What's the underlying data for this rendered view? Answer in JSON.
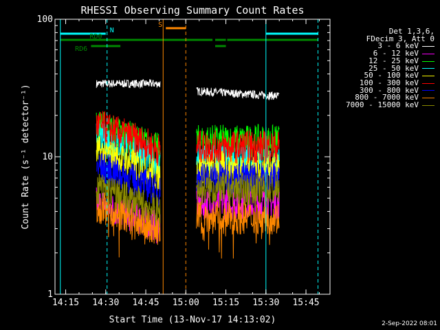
{
  "chart_data": {
    "type": "line",
    "title": "RHESSI Observing Summary Count Rates",
    "xlabel": "Start Time (13-Nov-17 14:13:02)",
    "ylabel": "Count Rate (s⁻¹ detector⁻¹)",
    "ylog": true,
    "ylim": [
      1,
      100
    ],
    "xlim_minutes": [
      "14:11",
      "15:54"
    ],
    "yticks": [
      1,
      10,
      100
    ],
    "xticks": [
      "14:15",
      "14:30",
      "14:45",
      "15:00",
      "15:15",
      "15:30",
      "15:45"
    ],
    "legend_header": [
      "Det 1,3,6,",
      "FDecim 3, Att 0"
    ],
    "series": [
      {
        "name": "3 - 6 keV",
        "color": "#ffffff",
        "seg1": 34,
        "seg2": 30,
        "trend2": -0.08
      },
      {
        "name": "6 - 12 keV",
        "color": "#ff00ff",
        "seg1": 4.6,
        "seg2": 4.6,
        "trend2": 0
      },
      {
        "name": "12 - 25 keV",
        "color": "#00ff00",
        "seg1": 17,
        "seg2": 13,
        "trend2": 0
      },
      {
        "name": "25 - 50 keV",
        "color": "#00ffff",
        "seg1": 14,
        "seg2": 9.5,
        "trend2": 0
      },
      {
        "name": "50 - 100 keV",
        "color": "#ffff00",
        "seg1": 11,
        "seg2": 8.4,
        "trend2": 0
      },
      {
        "name": "100 - 300 keV",
        "color": "#ff0000",
        "seg1": 17,
        "seg2": 11.8,
        "trend2": 0
      },
      {
        "name": "300 - 800 keV",
        "color": "#0000ff",
        "seg1": 8.5,
        "seg2": 7,
        "trend2": 0
      },
      {
        "name": "800 - 7000 keV",
        "color": "#ff8800",
        "seg1": 4.4,
        "seg2": 3.6,
        "trend2": 0
      },
      {
        "name": "7000 - 15000 keV",
        "color": "#8b8b00",
        "seg1": 6,
        "seg2": 5.8,
        "trend2": 0
      }
    ],
    "data_segments": [
      {
        "start": "14:26.5",
        "end": "14:50.5"
      },
      {
        "start": "15:04",
        "end": "15:35"
      }
    ],
    "vertical_lines": [
      {
        "time": "14:13",
        "color": "#00ffff",
        "style": "solid"
      },
      {
        "time": "14:30.5",
        "color": "#00ffff",
        "style": "dashed"
      },
      {
        "time": "14:51.5",
        "color": "#ff8800",
        "style": "solid"
      },
      {
        "time": "15:00",
        "color": "#ff8800",
        "style": "dashed"
      },
      {
        "time": "15:30",
        "color": "#00ffff",
        "style": "solid"
      },
      {
        "time": "15:49.5",
        "color": "#00ffff",
        "style": "dashed"
      }
    ],
    "flags": [
      {
        "label": "N",
        "color": "#00ffff",
        "segments": [
          [
            "14:13",
            "14:30"
          ],
          [
            "15:30",
            "15:49.5"
          ]
        ],
        "level": 1
      },
      {
        "label": "S",
        "color": "#ff8800",
        "segments": [
          [
            "14:52.5",
            "15:00"
          ]
        ],
        "level": 0
      },
      {
        "label": "RD0",
        "color": "#008800",
        "segments": [
          [
            "14:13",
            "15:10"
          ],
          [
            "15:11",
            "15:15"
          ],
          [
            "15:15.5",
            "15:49.5"
          ]
        ],
        "level": 2
      },
      {
        "label": "RD6",
        "color": "#008800",
        "segments": [
          [
            "14:24.5",
            "14:35.5"
          ],
          [
            "15:11",
            "15:15"
          ]
        ],
        "level": 3
      }
    ]
  },
  "footer": {
    "timestamp": "2-Sep-2022 08:01"
  }
}
